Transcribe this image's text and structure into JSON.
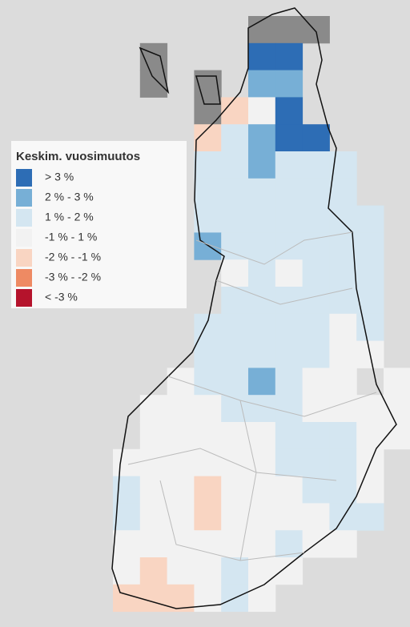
{
  "legend": {
    "title": "Keskim. vuosimuutos",
    "items": [
      {
        "label": "> 3 %",
        "color": "#2d6db5"
      },
      {
        "label": "2 % - 3 %",
        "color": "#77afd6"
      },
      {
        "label": "1 % - 2 %",
        "color": "#d4e6f1"
      },
      {
        "label": "-1 % - 1 %",
        "color": "#f2f2f2"
      },
      {
        "label": "-2 % - -1 %",
        "color": "#f9d5c2"
      },
      {
        "label": "-3 % - -2 %",
        "color": "#ee8a63"
      },
      {
        "label": "< -3 %",
        "color": "#b5132c"
      }
    ]
  }
}
